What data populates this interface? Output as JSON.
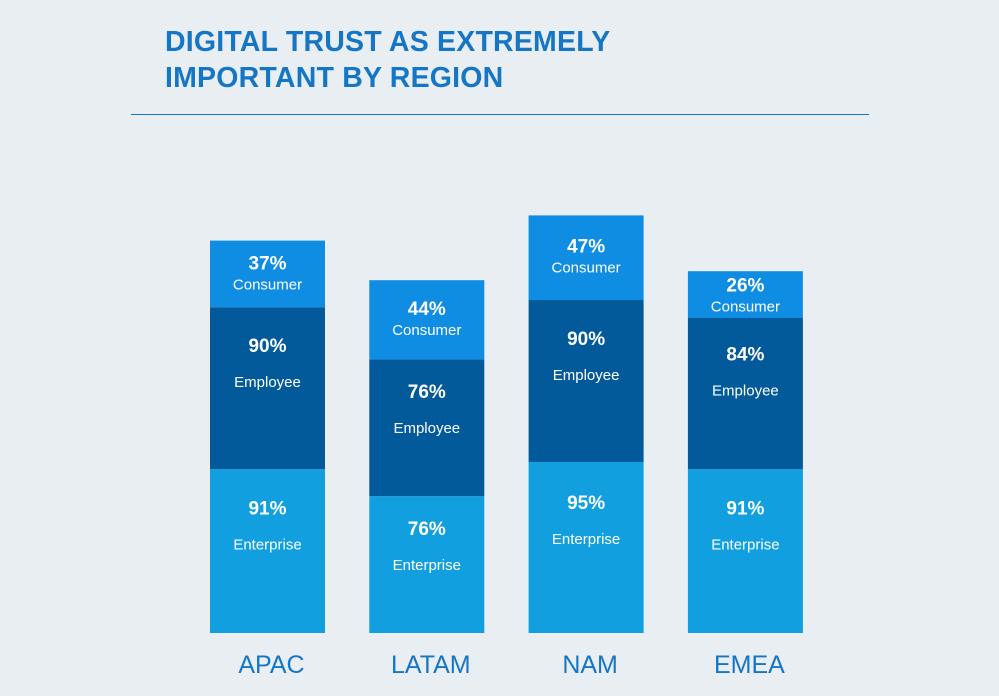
{
  "chart_data": {
    "type": "bar",
    "stacked": true,
    "title_lines": [
      "DIGITAL TRUST AS EXTREMELY",
      "IMPORTANT BY REGION"
    ],
    "categories": [
      "APAC",
      "LATAM",
      "NAM",
      "EMEA"
    ],
    "series": [
      {
        "name": "Enterprise",
        "values": [
          91,
          76,
          95,
          91
        ],
        "color": "#119fe0"
      },
      {
        "name": "Employee",
        "values": [
          90,
          76,
          90,
          84
        ],
        "color": "#035a9a"
      },
      {
        "name": "Consumer",
        "values": [
          37,
          44,
          47,
          26
        ],
        "color": "#0f8de2"
      }
    ],
    "value_suffix": "%",
    "legend": "none",
    "grid": false
  },
  "colors": {
    "background": "#e9eef2",
    "title": "#1576c5",
    "label_text": "#ffffff"
  }
}
